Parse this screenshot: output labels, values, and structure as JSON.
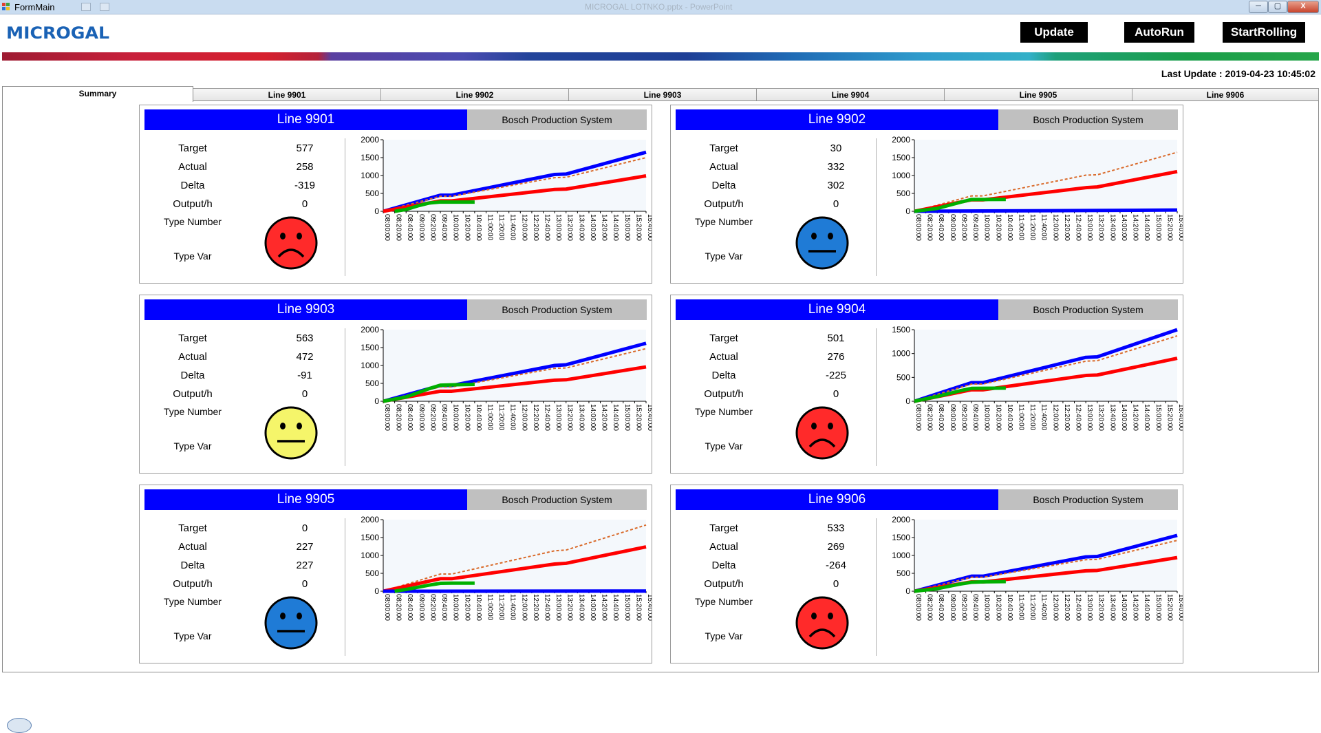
{
  "window": {
    "title": "FormMain",
    "center_title": "MICROGAL LOTNKO.pptx - PowerPoint",
    "minimize_label": "─",
    "maximize_label": "▢",
    "close_label": "X"
  },
  "header": {
    "logo": "MICROGAL",
    "update_label": "Update",
    "autorun_label": "AutoRun",
    "startrolling_label": "StartRolling",
    "last_update": "Last Update : 2019-04-23 10:45:02"
  },
  "tabs": [
    "Summary",
    "Line 9901",
    "Line 9902",
    "Line 9903",
    "Line 9904",
    "Line 9905",
    "Line 9906"
  ],
  "labels": {
    "target": "Target",
    "actual": "Actual",
    "delta": "Delta",
    "output": "Output/h",
    "type_number": "Type Number",
    "type_var": "Type Var",
    "system": "Bosch Production System"
  },
  "colors": {
    "title_blue": "#0000ff",
    "sad_red": "#ff2a2a",
    "neutral_yellow": "#f5f56a",
    "neutral_blue": "#1f7bd6",
    "series_blue": "#0000ff",
    "series_red": "#ff0000",
    "series_orange": "#d96a2a",
    "series_green": "#00b000"
  },
  "x_labels": [
    "08:00:00",
    "08:20:00",
    "08:40:00",
    "09:00:00",
    "09:20:00",
    "09:40:00",
    "10:00:00",
    "10:20:00",
    "10:40:00",
    "11:00:00",
    "11:20:00",
    "11:40:00",
    "12:00:00",
    "12:20:00",
    "12:40:00",
    "13:00:00",
    "13:20:00",
    "13:40:00",
    "14:00:00",
    "14:20:00",
    "14:40:00",
    "15:00:00",
    "15:20:00",
    "15:40:00"
  ],
  "lines": [
    {
      "name": "Line 9901",
      "target": "577",
      "actual": "258",
      "delta": "-319",
      "output": "0",
      "face": "sad",
      "face_color": "#ff2a2a"
    },
    {
      "name": "Line 9902",
      "target": "30",
      "actual": "332",
      "delta": "302",
      "output": "0",
      "face": "neutral",
      "face_color": "#1f7bd6"
    },
    {
      "name": "Line 9903",
      "target": "563",
      "actual": "472",
      "delta": "-91",
      "output": "0",
      "face": "neutral",
      "face_color": "#f5f56a"
    },
    {
      "name": "Line 9904",
      "target": "501",
      "actual": "276",
      "delta": "-225",
      "output": "0",
      "face": "sad",
      "face_color": "#ff2a2a"
    },
    {
      "name": "Line 9905",
      "target": "0",
      "actual": "227",
      "delta": "227",
      "output": "0",
      "face": "neutral",
      "face_color": "#1f7bd6"
    },
    {
      "name": "Line 9906",
      "target": "533",
      "actual": "269",
      "delta": "-264",
      "output": "0",
      "face": "sad",
      "face_color": "#ff2a2a"
    }
  ],
  "chart_data": [
    {
      "type": "line",
      "ylim": [
        0,
        2000
      ],
      "yticks": [
        0,
        500,
        1000,
        1500,
        2000
      ],
      "series": [
        {
          "color": "#0000ff",
          "style": "solid",
          "points": [
            [
              "08:00:00",
              0
            ],
            [
              "09:40:00",
              450
            ],
            [
              "10:00:00",
              450
            ],
            [
              "13:00:00",
              1030
            ],
            [
              "13:20:00",
              1040
            ],
            [
              "15:40:00",
              1650
            ]
          ]
        },
        {
          "color": "#d96a2a",
          "style": "dashed",
          "points": [
            [
              "08:00:00",
              0
            ],
            [
              "09:40:00",
              420
            ],
            [
              "10:00:00",
              420
            ],
            [
              "13:00:00",
              940
            ],
            [
              "13:20:00",
              950
            ],
            [
              "15:40:00",
              1500
            ]
          ]
        },
        {
          "color": "#ff0000",
          "style": "solid",
          "points": [
            [
              "08:00:00",
              0
            ],
            [
              "09:40:00",
              290
            ],
            [
              "10:00:00",
              290
            ],
            [
              "13:00:00",
              610
            ],
            [
              "13:20:00",
              620
            ],
            [
              "15:40:00",
              990
            ]
          ]
        },
        {
          "color": "#00b000",
          "style": "solid",
          "points": [
            [
              "08:20:00",
              0
            ],
            [
              "08:40:00",
              50
            ],
            [
              "09:00:00",
              150
            ],
            [
              "09:20:00",
              230
            ],
            [
              "09:40:00",
              260
            ],
            [
              "10:00:00",
              258
            ],
            [
              "10:40:00",
              258
            ]
          ]
        }
      ]
    },
    {
      "type": "line",
      "ylim": [
        0,
        2000
      ],
      "yticks": [
        0,
        500,
        1000,
        1500,
        2000
      ],
      "series": [
        {
          "color": "#d96a2a",
          "style": "dashed",
          "points": [
            [
              "08:00:00",
              0
            ],
            [
              "09:40:00",
              430
            ],
            [
              "10:00:00",
              430
            ],
            [
              "13:00:00",
              1010
            ],
            [
              "13:20:00",
              1020
            ],
            [
              "15:40:00",
              1650
            ]
          ]
        },
        {
          "color": "#ff0000",
          "style": "solid",
          "points": [
            [
              "08:00:00",
              0
            ],
            [
              "09:40:00",
              320
            ],
            [
              "10:00:00",
              320
            ],
            [
              "13:00:00",
              660
            ],
            [
              "13:20:00",
              680
            ],
            [
              "15:40:00",
              1110
            ]
          ]
        },
        {
          "color": "#0000ff",
          "style": "solid",
          "points": [
            [
              "08:00:00",
              0
            ],
            [
              "15:40:00",
              35
            ]
          ]
        },
        {
          "color": "#00b000",
          "style": "solid",
          "points": [
            [
              "08:00:00",
              0
            ],
            [
              "08:40:00",
              80
            ],
            [
              "09:20:00",
              250
            ],
            [
              "09:40:00",
              330
            ],
            [
              "10:00:00",
              330
            ],
            [
              "10:40:00",
              332
            ]
          ]
        }
      ]
    },
    {
      "type": "line",
      "ylim": [
        0,
        2000
      ],
      "yticks": [
        0,
        500,
        1000,
        1500,
        2000
      ],
      "series": [
        {
          "color": "#0000ff",
          "style": "solid",
          "points": [
            [
              "08:00:00",
              0
            ],
            [
              "09:40:00",
              440
            ],
            [
              "10:00:00",
              440
            ],
            [
              "13:00:00",
              1000
            ],
            [
              "13:20:00",
              1020
            ],
            [
              "15:40:00",
              1620
            ]
          ]
        },
        {
          "color": "#d96a2a",
          "style": "dashed",
          "points": [
            [
              "08:00:00",
              0
            ],
            [
              "09:40:00",
              400
            ],
            [
              "10:00:00",
              400
            ],
            [
              "13:00:00",
              920
            ],
            [
              "13:20:00",
              930
            ],
            [
              "15:40:00",
              1470
            ]
          ]
        },
        {
          "color": "#ff0000",
          "style": "solid",
          "points": [
            [
              "08:00:00",
              0
            ],
            [
              "09:40:00",
              280
            ],
            [
              "10:00:00",
              280
            ],
            [
              "13:00:00",
              590
            ],
            [
              "13:20:00",
              600
            ],
            [
              "15:40:00",
              960
            ]
          ]
        },
        {
          "color": "#00b000",
          "style": "solid",
          "points": [
            [
              "08:00:00",
              0
            ],
            [
              "08:40:00",
              120
            ],
            [
              "09:20:00",
              350
            ],
            [
              "09:40:00",
              450
            ],
            [
              "10:00:00",
              460
            ],
            [
              "10:40:00",
              472
            ]
          ]
        }
      ]
    },
    {
      "type": "line",
      "ylim": [
        0,
        1500
      ],
      "yticks": [
        0,
        500,
        1000,
        1500
      ],
      "series": [
        {
          "color": "#0000ff",
          "style": "solid",
          "points": [
            [
              "08:00:00",
              0
            ],
            [
              "09:40:00",
              390
            ],
            [
              "10:00:00",
              390
            ],
            [
              "13:00:00",
              920
            ],
            [
              "13:20:00",
              930
            ],
            [
              "15:40:00",
              1500
            ]
          ]
        },
        {
          "color": "#d96a2a",
          "style": "dashed",
          "points": [
            [
              "08:00:00",
              0
            ],
            [
              "09:40:00",
              360
            ],
            [
              "10:00:00",
              360
            ],
            [
              "13:00:00",
              840
            ],
            [
              "13:20:00",
              850
            ],
            [
              "15:40:00",
              1370
            ]
          ]
        },
        {
          "color": "#ff0000",
          "style": "solid",
          "points": [
            [
              "08:00:00",
              0
            ],
            [
              "09:40:00",
              240
            ],
            [
              "10:00:00",
              240
            ],
            [
              "13:00:00",
              540
            ],
            [
              "13:20:00",
              550
            ],
            [
              "15:40:00",
              900
            ]
          ]
        },
        {
          "color": "#00b000",
          "style": "solid",
          "points": [
            [
              "08:00:00",
              0
            ],
            [
              "08:40:00",
              100
            ],
            [
              "09:20:00",
              220
            ],
            [
              "09:40:00",
              270
            ],
            [
              "10:00:00",
              272
            ],
            [
              "10:40:00",
              276
            ]
          ]
        }
      ]
    },
    {
      "type": "line",
      "ylim": [
        0,
        2000
      ],
      "yticks": [
        0,
        500,
        1000,
        1500,
        2000
      ],
      "series": [
        {
          "color": "#d96a2a",
          "style": "dashed",
          "points": [
            [
              "08:00:00",
              0
            ],
            [
              "09:40:00",
              480
            ],
            [
              "10:00:00",
              480
            ],
            [
              "13:00:00",
              1130
            ],
            [
              "13:20:00",
              1150
            ],
            [
              "15:40:00",
              1850
            ]
          ]
        },
        {
          "color": "#ff0000",
          "style": "solid",
          "points": [
            [
              "08:00:00",
              0
            ],
            [
              "09:40:00",
              350
            ],
            [
              "10:00:00",
              350
            ],
            [
              "13:00:00",
              760
            ],
            [
              "13:20:00",
              780
            ],
            [
              "15:40:00",
              1240
            ]
          ]
        },
        {
          "color": "#0000ff",
          "style": "solid",
          "points": [
            [
              "08:00:00",
              0
            ],
            [
              "15:40:00",
              5
            ]
          ]
        },
        {
          "color": "#00b000",
          "style": "solid",
          "points": [
            [
              "08:20:00",
              0
            ],
            [
              "08:40:00",
              50
            ],
            [
              "09:20:00",
              170
            ],
            [
              "09:40:00",
              220
            ],
            [
              "10:00:00",
              225
            ],
            [
              "10:40:00",
              227
            ]
          ]
        }
      ]
    },
    {
      "type": "line",
      "ylim": [
        0,
        2000
      ],
      "yticks": [
        0,
        500,
        1000,
        1500,
        2000
      ],
      "series": [
        {
          "color": "#0000ff",
          "style": "solid",
          "points": [
            [
              "08:00:00",
              0
            ],
            [
              "09:40:00",
              420
            ],
            [
              "10:00:00",
              420
            ],
            [
              "13:00:00",
              960
            ],
            [
              "13:20:00",
              970
            ],
            [
              "15:40:00",
              1560
            ]
          ]
        },
        {
          "color": "#d96a2a",
          "style": "dashed",
          "points": [
            [
              "08:00:00",
              0
            ],
            [
              "09:40:00",
              390
            ],
            [
              "10:00:00",
              390
            ],
            [
              "13:00:00",
              880
            ],
            [
              "13:20:00",
              890
            ],
            [
              "15:40:00",
              1420
            ]
          ]
        },
        {
          "color": "#ff0000",
          "style": "solid",
          "points": [
            [
              "08:00:00",
              0
            ],
            [
              "09:40:00",
              260
            ],
            [
              "10:00:00",
              260
            ],
            [
              "13:00:00",
              570
            ],
            [
              "13:20:00",
              580
            ],
            [
              "15:40:00",
              940
            ]
          ]
        },
        {
          "color": "#00b000",
          "style": "solid",
          "points": [
            [
              "08:00:00",
              0
            ],
            [
              "08:40:00",
              70
            ],
            [
              "09:20:00",
              200
            ],
            [
              "09:40:00",
              250
            ],
            [
              "10:00:00",
              262
            ],
            [
              "10:40:00",
              269
            ]
          ]
        }
      ]
    }
  ]
}
